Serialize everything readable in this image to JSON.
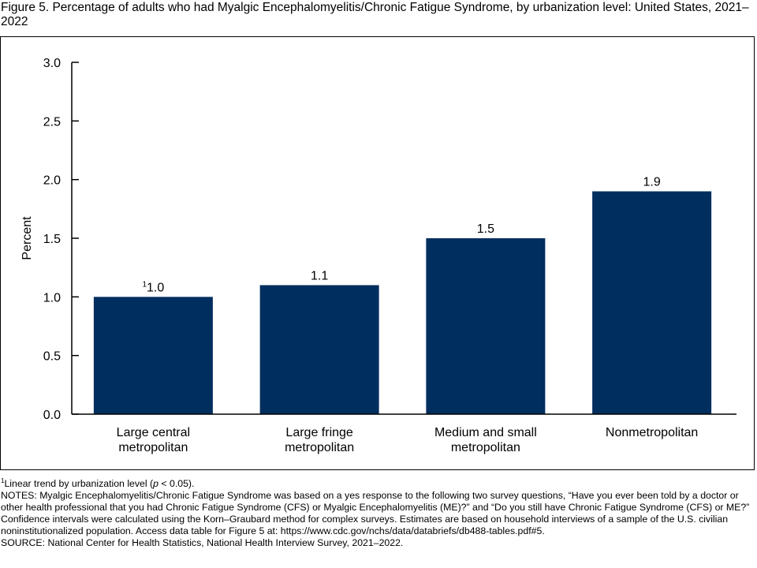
{
  "figure": {
    "title": "Figure 5. Percentage of adults who had Myalgic Encephalomyelitis/Chronic Fatigue Syndrome, by urbanization level: United States, 2021–2022"
  },
  "chart_data": {
    "type": "bar",
    "categories": [
      [
        "Large central",
        "metropolitan"
      ],
      [
        "Large fringe",
        "metropolitan"
      ],
      [
        "Medium and small",
        "metropolitan"
      ],
      [
        "Nonmetropolitan"
      ]
    ],
    "values": [
      1.0,
      1.1,
      1.5,
      1.9
    ],
    "value_labels": [
      "1.0",
      "1.1",
      "1.5",
      "1.9"
    ],
    "label_superscripts": [
      "1",
      "",
      "",
      ""
    ],
    "ylabel": "Percent",
    "xlabel": "",
    "ylim": [
      0,
      3.0
    ],
    "yticks": [
      "0.0",
      "0.5",
      "1.0",
      "1.5",
      "2.0",
      "2.5",
      "3.0"
    ],
    "bar_color": "#002e5f",
    "grid": false
  },
  "footnotes": {
    "footnote_mark": "1",
    "footnote_text": "Linear trend by urbanization level (",
    "footnote_p": "p",
    "footnote_tail": " < 0.05).",
    "notes": "NOTES: Myalgic Encephalomyelitis/Chronic Fatigue Syndrome was based on a yes response to the following two survey questions, “Have you ever been told by a doctor or other health professional that you had Chronic Fatigue Syndrome (CFS) or Myalgic Encephalomyelitis (ME)?” and “Do you still have Chronic Fatigue Syndrome (CFS) or ME?” Confidence intervals were calculated using the Korn–Graubard method for complex surveys. Estimates are based on household interviews of a sample of the U.S. civilian noninstitutionalized population. Access data table for Figure 5 at: https://www.cdc.gov/nchs/data/databriefs/db488-tables.pdf#5.",
    "source": "SOURCE: National Center for Health Statistics, National Health Interview Survey, 2021–2022."
  }
}
